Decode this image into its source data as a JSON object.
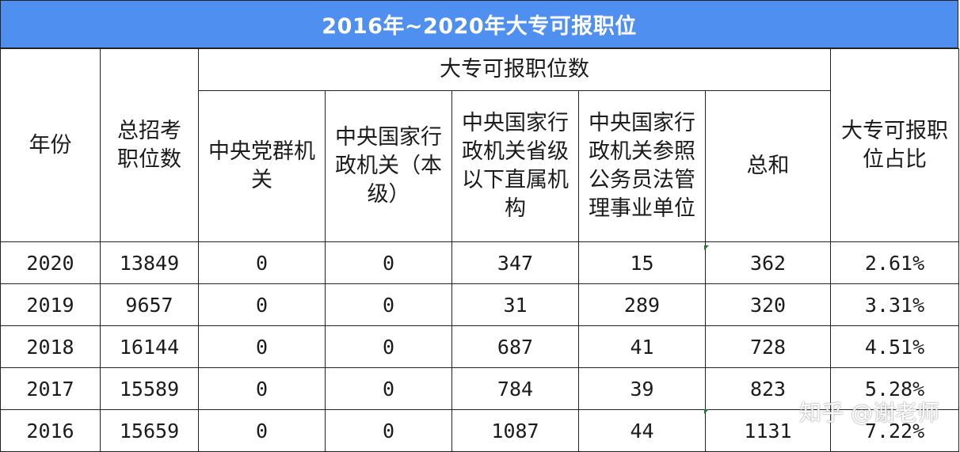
{
  "title": "2016年~2020年大专可报职位",
  "headers": {
    "year": "年份",
    "total_positions": "总招考职位数",
    "group_header": "大专可报职位数",
    "central_party": "中央党群机关",
    "central_state_level": "中央国家行政机关（本级）",
    "central_state_provincial": "中央国家行政机关省级以下直属机构",
    "central_state_reference": "中央国家行政机关参照公务员法管理事业单位",
    "sum": "总和",
    "ratio": "大专可报职位占比"
  },
  "rows": [
    {
      "year": "2020",
      "total": "13849",
      "party": "0",
      "level": "0",
      "provincial": "347",
      "reference": "15",
      "sum": "362",
      "ratio": "2.61%"
    },
    {
      "year": "2019",
      "total": "9657",
      "party": "0",
      "level": "0",
      "provincial": "31",
      "reference": "289",
      "sum": "320",
      "ratio": "3.31%"
    },
    {
      "year": "2018",
      "total": "16144",
      "party": "0",
      "level": "0",
      "provincial": "687",
      "reference": "41",
      "sum": "728",
      "ratio": "4.51%"
    },
    {
      "year": "2017",
      "total": "15589",
      "party": "0",
      "level": "0",
      "provincial": "784",
      "reference": "39",
      "sum": "823",
      "ratio": "5.28%"
    },
    {
      "year": "2016",
      "total": "15659",
      "party": "0",
      "level": "0",
      "provincial": "1087",
      "reference": "44",
      "sum": "1131",
      "ratio": "7.22%"
    }
  ],
  "watermark": "知乎 @谢老师",
  "colors": {
    "title_bg": "#4f8ff0",
    "title_text": "#ffffff",
    "grid": "#222222"
  }
}
